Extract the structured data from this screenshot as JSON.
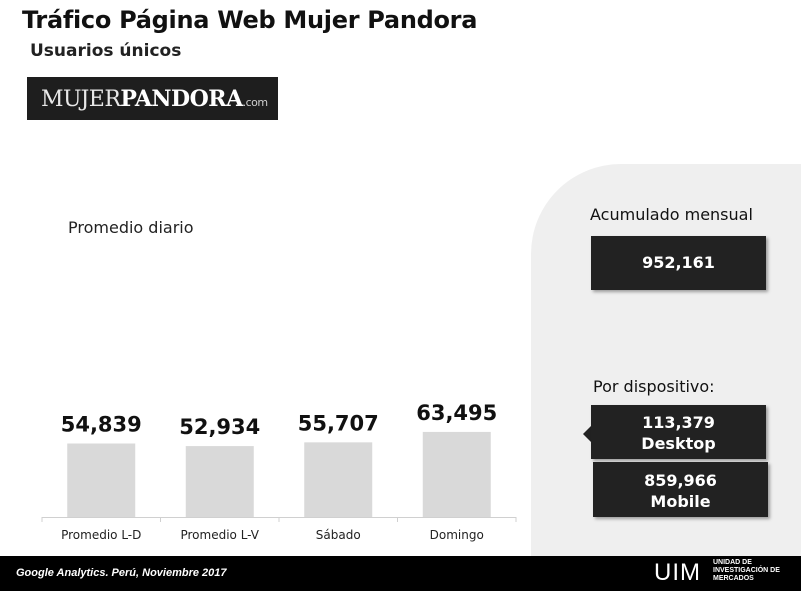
{
  "header": {
    "title": "Tráfico Página Web Mujer Pandora",
    "subtitle": "Usuarios únicos"
  },
  "logo": {
    "part1": "MUJER",
    "part2": "PANDORA",
    "part3": ".com"
  },
  "chart_data": {
    "type": "bar",
    "title": "Promedio diario",
    "categories": [
      "Promedio L-D",
      "Promedio L-V",
      "Sábado",
      "Domingo"
    ],
    "values": [
      54839,
      52934,
      55707,
      63495
    ],
    "data_labels": [
      "54,839",
      "52,934",
      "55,707",
      "63,495"
    ],
    "bar_color": "#d9d9d9",
    "grid": false,
    "legend": "none"
  },
  "summary": {
    "monthly_heading": "Acumulado mensual",
    "monthly_value": "952,161",
    "device_heading": "Por dispositivo:",
    "desktop_value": "113,379",
    "desktop_label": "Desktop",
    "mobile_value": "859,966",
    "mobile_label": "Mobile"
  },
  "footer": {
    "source": "Google Analytics. Perú, Noviembre 2017",
    "uim": "UIM",
    "uim_line1": "UNIDAD DE",
    "uim_line2": "INVESTIGACIÓN DE",
    "uim_line3": "MERCADOS"
  },
  "colors": {
    "box_dark": "#222222",
    "panel_bg": "#efefef",
    "footer_bg": "#000000"
  }
}
